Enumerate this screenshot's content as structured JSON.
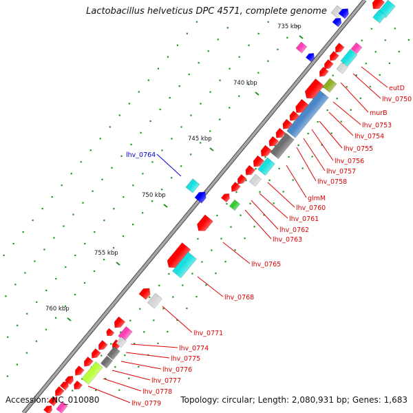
{
  "title": "Lactobacillus helveticus DPC 4571, complete genome",
  "accession": "Accession: NC_010080",
  "summary": "Topology: circular; Length: 2,080,931 bp; Genes: 1,683",
  "colors": {
    "backbone": "#8a8a8a",
    "gene_red": "#ff0000",
    "cyan": "#19e0e0",
    "blue": "#0000ff",
    "magenta": "#ff3fb4",
    "gray_dark": "#6e6e6e",
    "gray_light": "#d4d4d4",
    "steel_blue": "#4a86c8",
    "olive": "#8fb020",
    "green": "#33cc33",
    "yellow_green": "#b8ff3a",
    "label_red": "#dd0000",
    "label_blue": "#0000cc",
    "tick_green": "#1f8f1f"
  },
  "kbp_ticks": [
    "735 kbp",
    "740 kbp",
    "745 kbp",
    "750 kbp",
    "755 kbp",
    "760 kbp"
  ],
  "gene_labels": [
    {
      "name": "eutD",
      "color": "red"
    },
    {
      "name": "lhv_0750",
      "color": "red"
    },
    {
      "name": "murB",
      "color": "red"
    },
    {
      "name": "lhv_0753",
      "color": "red"
    },
    {
      "name": "lhv_0754",
      "color": "red"
    },
    {
      "name": "lhv_0755",
      "color": "red"
    },
    {
      "name": "lhv_0756",
      "color": "red"
    },
    {
      "name": "lhv_0757",
      "color": "red"
    },
    {
      "name": "lhv_0758",
      "color": "red"
    },
    {
      "name": "glmM",
      "color": "red"
    },
    {
      "name": "lhv_0760",
      "color": "red"
    },
    {
      "name": "lhv_0761",
      "color": "red"
    },
    {
      "name": "lhv_0762",
      "color": "red"
    },
    {
      "name": "lhv_0763",
      "color": "red"
    },
    {
      "name": "lhv_0764",
      "color": "blue"
    },
    {
      "name": "lhv_0765",
      "color": "red"
    },
    {
      "name": "lhv_0768",
      "color": "red"
    },
    {
      "name": "lhv_0771",
      "color": "red"
    },
    {
      "name": "lhv_0774",
      "color": "red"
    },
    {
      "name": "lhv_0775",
      "color": "red"
    },
    {
      "name": "lhv_0776",
      "color": "red"
    },
    {
      "name": "lhv_0777",
      "color": "red"
    },
    {
      "name": "lhv_0778",
      "color": "red"
    },
    {
      "name": "lhv_0779",
      "color": "red"
    }
  ]
}
